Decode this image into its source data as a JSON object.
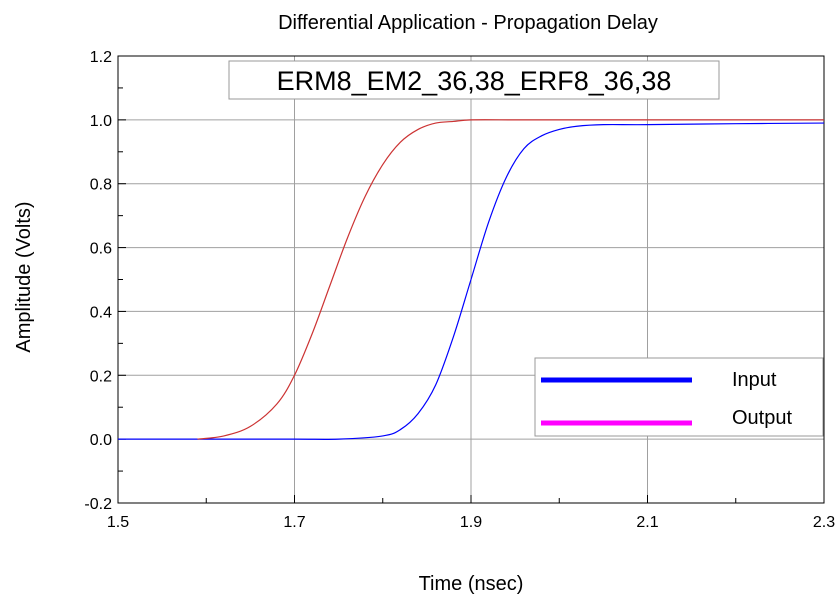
{
  "chart_data": {
    "type": "line",
    "title": "Differential Application - Propagation Delay",
    "xlabel": "Time (nsec)",
    "ylabel": "Amplitude (Volts)",
    "xlim": [
      1.5,
      2.3
    ],
    "ylim": [
      -0.2,
      1.2
    ],
    "grid": true,
    "xticks": [
      {
        "value": 1.5,
        "label": "1.5"
      },
      {
        "value": 1.7,
        "label": "1.7"
      },
      {
        "value": 1.9,
        "label": "1.9"
      },
      {
        "value": 2.1,
        "label": "2.1"
      },
      {
        "value": 2.3,
        "label": "2.3"
      }
    ],
    "yticks": [
      {
        "value": -0.2,
        "label": "-0.2"
      },
      {
        "value": 0.0,
        "label": "0.0"
      },
      {
        "value": 0.2,
        "label": "0.2"
      },
      {
        "value": 0.4,
        "label": "0.4"
      },
      {
        "value": 0.6,
        "label": "0.6"
      },
      {
        "value": 0.8,
        "label": "0.8"
      },
      {
        "value": 1.0,
        "label": "1.0"
      },
      {
        "value": 1.2,
        "label": "1.2"
      }
    ],
    "annotation": "ERM8_EM2_36,38_ERF8_36,38",
    "legend_position": "bottom-right",
    "legend": [
      {
        "name": "Input",
        "color": "#0000ff"
      },
      {
        "name": "Output",
        "color": "#ff00ff"
      }
    ],
    "series": [
      {
        "color": "#0000ff",
        "x": [
          1.5,
          1.6,
          1.7,
          1.75,
          1.8,
          1.82,
          1.84,
          1.86,
          1.88,
          1.9,
          1.92,
          1.94,
          1.96,
          1.98,
          2.0,
          2.02,
          2.05,
          2.1,
          2.2,
          2.3
        ],
        "y": [
          0.0,
          0.0,
          0.0,
          0.0,
          0.01,
          0.03,
          0.08,
          0.17,
          0.32,
          0.5,
          0.68,
          0.82,
          0.91,
          0.95,
          0.97,
          0.98,
          0.985,
          0.985,
          0.988,
          0.99
        ]
      },
      {
        "color": "#cc3333",
        "x": [
          1.59,
          1.62,
          1.65,
          1.68,
          1.7,
          1.72,
          1.74,
          1.76,
          1.78,
          1.8,
          1.82,
          1.84,
          1.86,
          1.88,
          1.9,
          1.95,
          2.0,
          2.1,
          2.2,
          2.3
        ],
        "y": [
          0.0,
          0.01,
          0.04,
          0.11,
          0.2,
          0.33,
          0.48,
          0.63,
          0.76,
          0.86,
          0.93,
          0.97,
          0.99,
          0.995,
          1.0,
          1.0,
          1.0,
          1.0,
          1.0,
          1.0
        ]
      }
    ]
  }
}
